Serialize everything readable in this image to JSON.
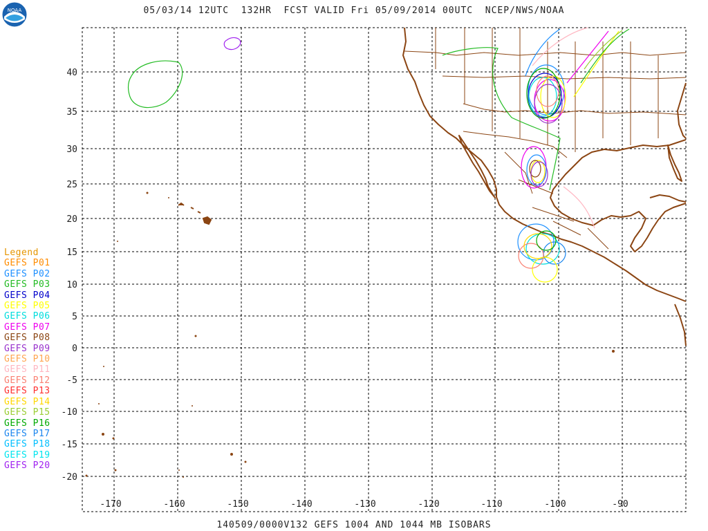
{
  "header": {
    "title": "05/03/14 12UTC  132HR  FCST VALID Fri 05/09/2014 00UTC  NCEP/NWS/NOAA",
    "logo_text": "NOAA"
  },
  "footer": "140509/0000V132 GEFS 1004 AND 1044 MB ISOBARS",
  "map": {
    "lon_labels": [
      "-170",
      "-160",
      "-150",
      "-140",
      "-130",
      "-120",
      "-110",
      "-100",
      "-90"
    ],
    "lat_labels": [
      "40",
      "35",
      "30",
      "25",
      "20",
      "15",
      "10",
      "5",
      "0",
      "-5",
      "-10",
      "-15",
      "-20"
    ],
    "coastline_color": "#8b4513",
    "border_color": "#8b4513"
  },
  "legend": {
    "title": "Legend",
    "title_color": "#e69500",
    "entries": [
      {
        "label": "GEFS P01",
        "color": "#ff8c00"
      },
      {
        "label": "GEFS P02",
        "color": "#1e90ff"
      },
      {
        "label": "GEFS P03",
        "color": "#22bb22"
      },
      {
        "label": "GEFS P04",
        "color": "#0000cc"
      },
      {
        "label": "GEFS P05",
        "color": "#ffff00"
      },
      {
        "label": "GEFS P06",
        "color": "#00dddd"
      },
      {
        "label": "GEFS P07",
        "color": "#ee00ee"
      },
      {
        "label": "GEFS P08",
        "color": "#8b4513"
      },
      {
        "label": "GEFS P09",
        "color": "#9932cc"
      },
      {
        "label": "GEFS P10",
        "color": "#ffa54f"
      },
      {
        "label": "GEFS P11",
        "color": "#ffb6c1"
      },
      {
        "label": "GEFS P12",
        "color": "#fa8072"
      },
      {
        "label": "GEFS P13",
        "color": "#ff3030"
      },
      {
        "label": "GEFS P14",
        "color": "#ffd700"
      },
      {
        "label": "GEFS P15",
        "color": "#9acd32"
      },
      {
        "label": "GEFS P16",
        "color": "#00aa00"
      },
      {
        "label": "GEFS P17",
        "color": "#1c86ee"
      },
      {
        "label": "GEFS P18",
        "color": "#00bfff"
      },
      {
        "label": "GEFS P19",
        "color": "#00e5ee"
      },
      {
        "label": "GEFS P20",
        "color": "#a020f0"
      }
    ]
  }
}
